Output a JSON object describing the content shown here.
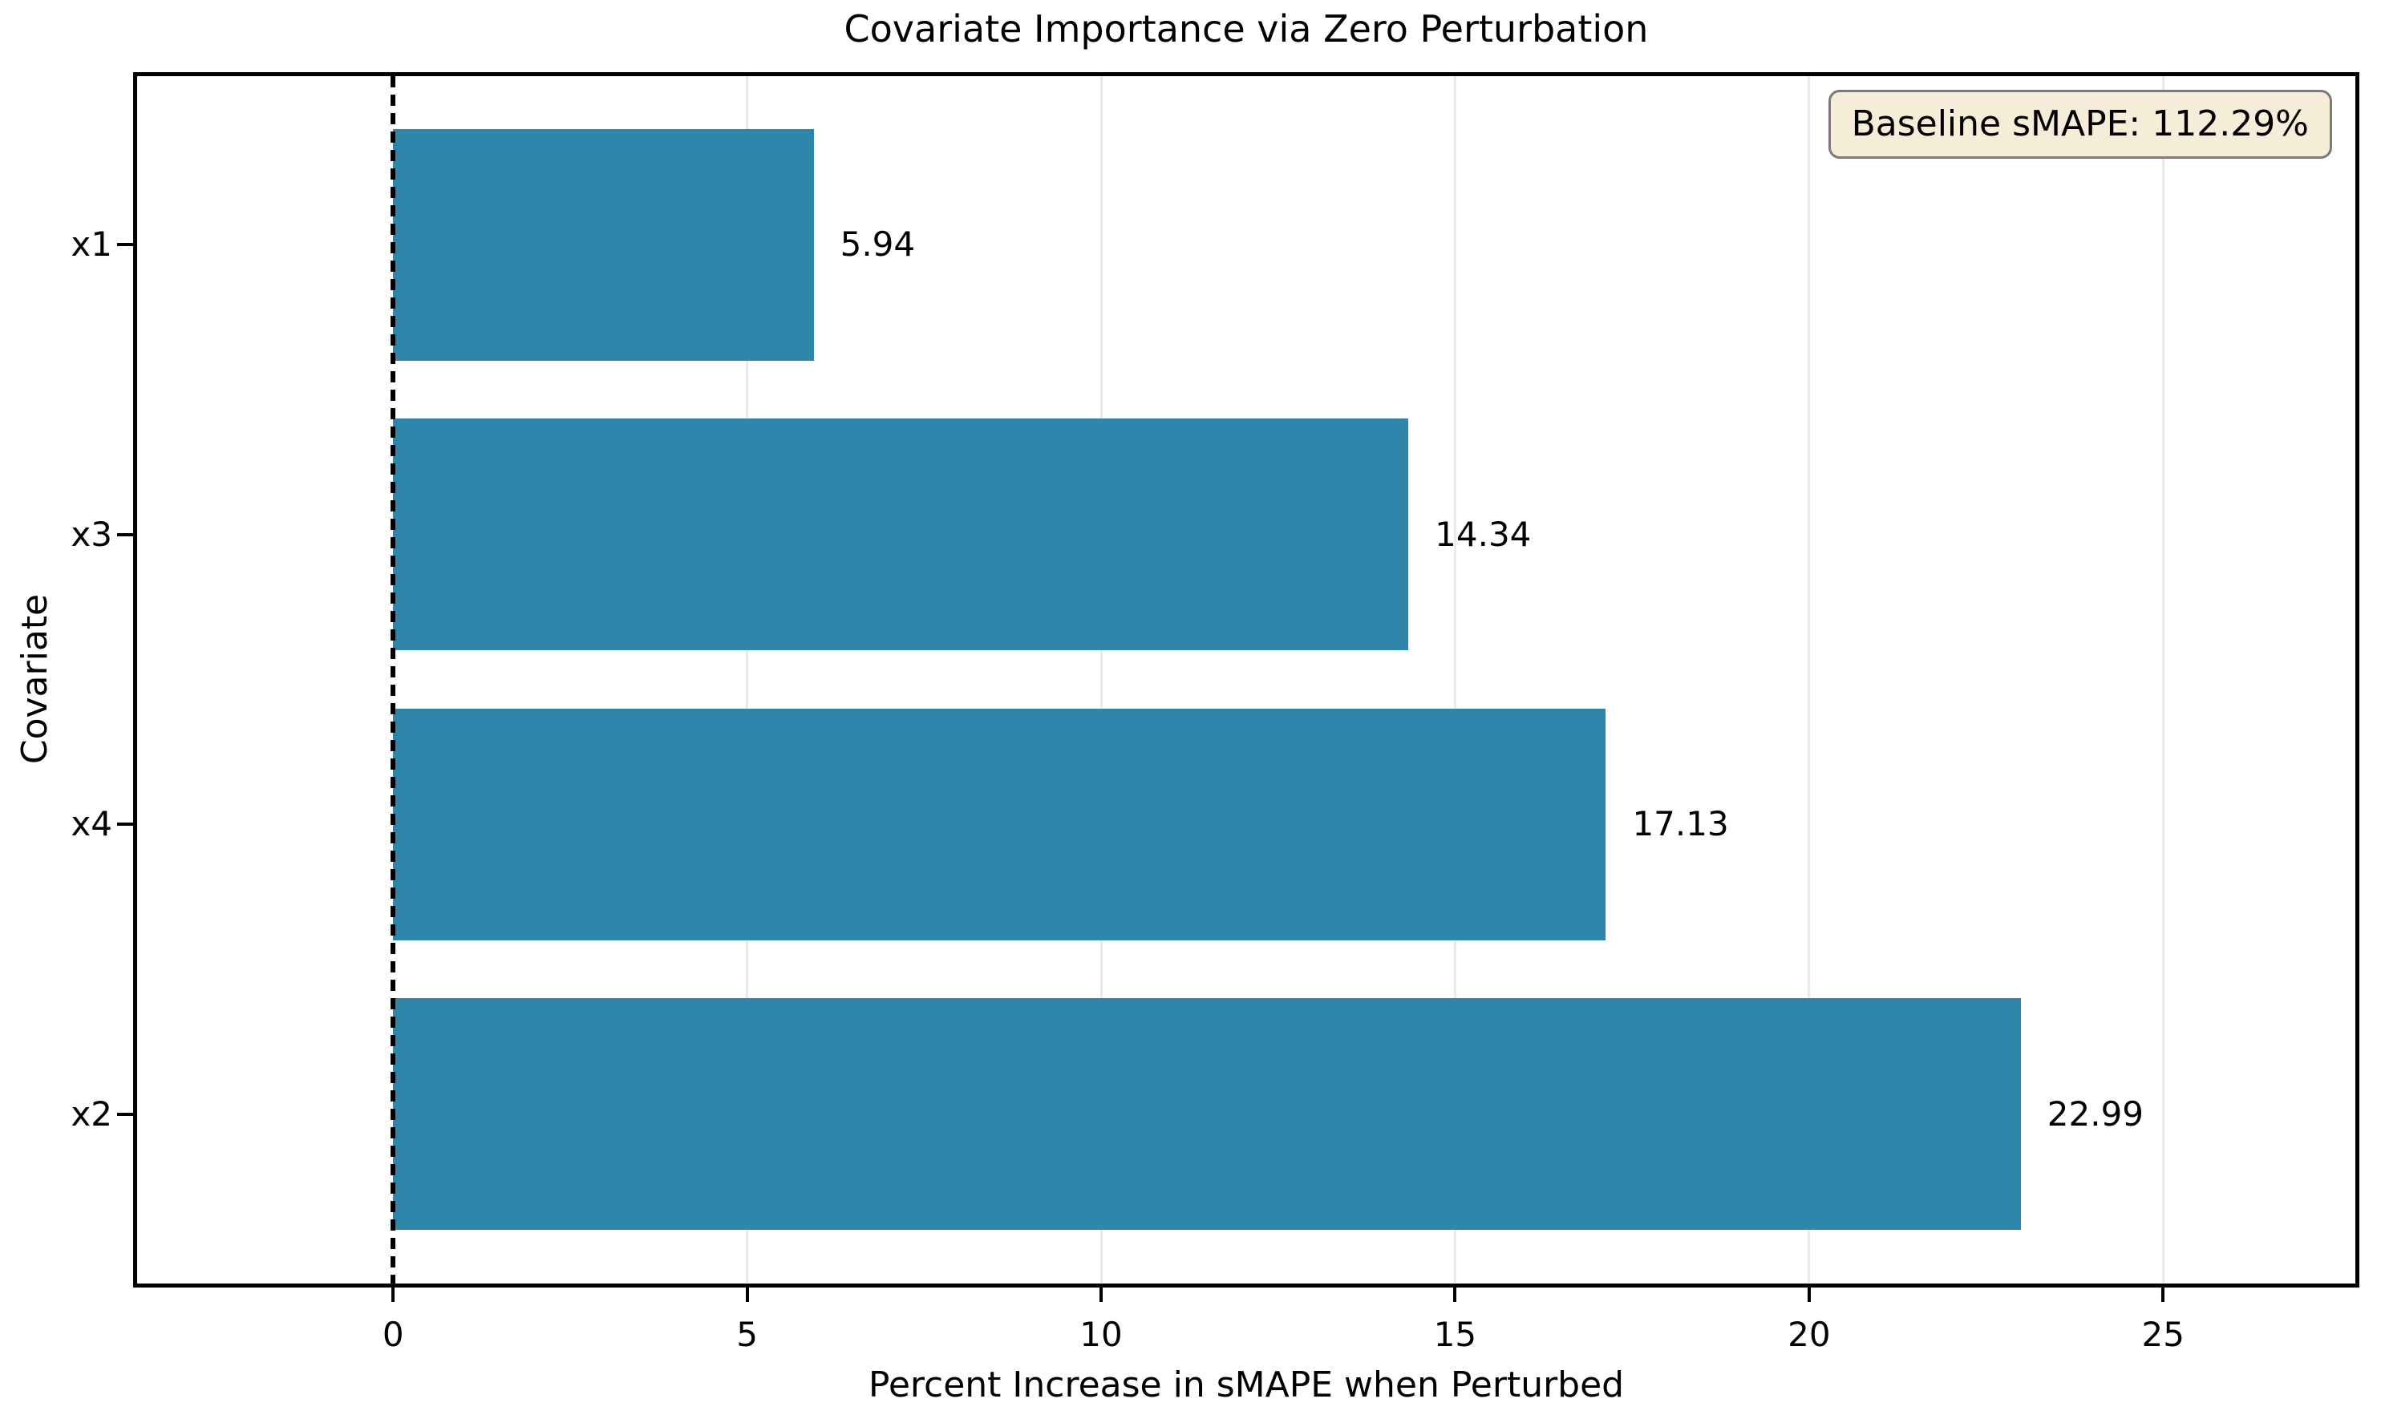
{
  "figure": {
    "title": "Covariate Importance via Zero Perturbation"
  },
  "chart_data": {
    "type": "bar",
    "orientation": "horizontal",
    "title": "Covariate Importance via Zero Perturbation",
    "xlabel": "Percent Increase in sMAPE when Perturbed",
    "ylabel": "Covariate",
    "categories": [
      "x1",
      "x3",
      "x4",
      "x2"
    ],
    "values": [
      5.94,
      14.34,
      17.13,
      22.99
    ],
    "value_labels": [
      "5.94",
      "14.34",
      "17.13",
      "22.99"
    ],
    "x_ticks": [
      0,
      5,
      10,
      15,
      20,
      25
    ],
    "x_tick_labels": [
      "0",
      "5",
      "10",
      "15",
      "20",
      "25"
    ],
    "xlim": [
      -3.65,
      27.75
    ],
    "grid": "vertical-light",
    "legend_position": "upper-right",
    "baseline_annotation": "Baseline sMAPE: 112.29%",
    "reference_line_x": 0,
    "bar_width_fraction": 0.8,
    "colors": {
      "bar": "#2e86ab",
      "grid": "#eaeaea",
      "reference_line": "#000000",
      "annotation_bg": "#f6edd8",
      "annotation_border": "#7a7a7a",
      "text": "#000000"
    }
  }
}
